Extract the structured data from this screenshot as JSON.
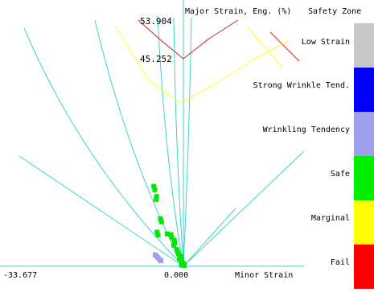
{
  "chart_data": {
    "type": "scatter",
    "title": "Major Strain, Eng. (%)",
    "xlabel": "Minor Strain",
    "x_tick_labels": [
      "-33.677",
      "0.000"
    ],
    "y_tick_labels": [
      "53.904",
      "45.252"
    ],
    "curves": {
      "fld_red": {
        "label": "53.904",
        "color": "#cc2222"
      },
      "fld_yellow": {
        "label": "45.252",
        "color": "#ffff22"
      }
    },
    "series": [
      {
        "color": "#00e600",
        "points": [
          [
            -6.2,
            19.0
          ],
          [
            -6.0,
            18.2
          ],
          [
            -5.6,
            16.6
          ],
          [
            -5.7,
            15.9
          ],
          [
            -4.8,
            11.3
          ],
          [
            -4.6,
            10.6
          ],
          [
            -5.5,
            8.1
          ],
          [
            -5.3,
            7.4
          ],
          [
            -3.4,
            7.7
          ],
          [
            -2.6,
            7.5
          ],
          [
            -2.4,
            6.8
          ],
          [
            -1.9,
            6.2
          ],
          [
            -1.8,
            5.6
          ],
          [
            -2.0,
            5.0
          ],
          [
            -1.4,
            4.0
          ],
          [
            -1.2,
            3.4
          ],
          [
            -1.0,
            2.9
          ],
          [
            -0.5,
            2.3
          ],
          [
            -0.8,
            1.7
          ],
          [
            -0.3,
            1.2
          ],
          [
            0.0,
            0.6
          ],
          [
            -0.4,
            0.3
          ],
          [
            0.2,
            0.2
          ]
        ]
      },
      {
        "color": "#a0a0f0",
        "points": [
          [
            -5.9,
            2.7
          ],
          [
            -5.6,
            2.4
          ],
          [
            -5.3,
            2.0
          ],
          [
            -5.0,
            1.6
          ],
          [
            -4.7,
            1.3
          ]
        ]
      }
    ]
  },
  "legend": {
    "title": "Safety Zone",
    "items": [
      {
        "label": "Low Strain",
        "color": "#c8c8c8"
      },
      {
        "label": "Strong Wrinkle Tend.",
        "color": "#0000ff"
      },
      {
        "label": "Wrinkling Tendency",
        "color": "#a0a0f0"
      },
      {
        "label": "Safe",
        "color": "#00ee00"
      },
      {
        "label": "Marginal",
        "color": "#ffff00"
      },
      {
        "label": "Fail",
        "color": "#ff0000"
      }
    ]
  },
  "colors": {
    "guide_lines": "#40d0d0"
  }
}
